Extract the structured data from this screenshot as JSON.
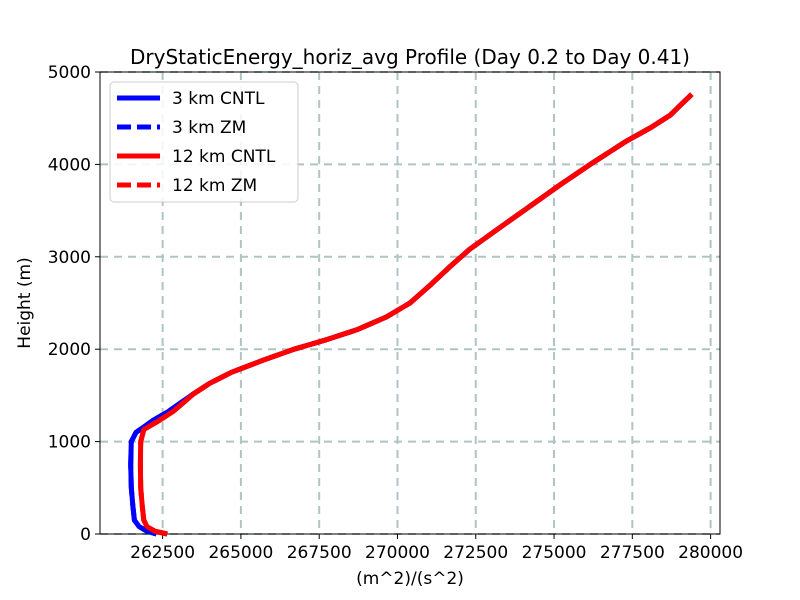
{
  "chart_data": {
    "type": "line",
    "title": "DryStaticEnergy_horiz_avg Profile (Day 0.2 to Day 0.41)",
    "xlabel": "(m^2)/(s^2)",
    "ylabel": "Height (m)",
    "xlim": [
      260500,
      280300
    ],
    "ylim": [
      0,
      5000
    ],
    "xticks": [
      262500,
      265000,
      267500,
      270000,
      272500,
      275000,
      277500,
      280000
    ],
    "xtick_labels": [
      "262500",
      "265000",
      "267500",
      "270000",
      "272500",
      "275000",
      "277500",
      "280000"
    ],
    "yticks": [
      0,
      1000,
      2000,
      3000,
      4000,
      5000
    ],
    "ytick_labels": [
      "0",
      "1000",
      "2000",
      "3000",
      "4000",
      "5000"
    ],
    "grid": true,
    "legend_position": "top-left",
    "series": [
      {
        "name": "3 km CNTL",
        "color": "#0000ff",
        "linestyle": "solid",
        "x": [
          262300,
          262000,
          261750,
          261600,
          261550,
          261500,
          261480,
          261500,
          261650,
          262200,
          262700,
          263500,
          264000,
          264700,
          265700,
          266700,
          267700,
          268700,
          269650,
          270400,
          271000,
          271700,
          272300,
          273200,
          274200,
          275200,
          276200,
          277300,
          278100,
          278700,
          279400
        ],
        "y": [
          0,
          30,
          80,
          150,
          300,
          500,
          750,
          1000,
          1100,
          1230,
          1330,
          1520,
          1630,
          1750,
          1880,
          2000,
          2100,
          2210,
          2350,
          2500,
          2680,
          2900,
          3080,
          3300,
          3540,
          3780,
          4010,
          4250,
          4400,
          4530,
          4760
        ]
      },
      {
        "name": "3 km ZM",
        "color": "#0000ff",
        "linestyle": "dashed",
        "x": [
          262300,
          262000,
          261750,
          261600,
          261550,
          261500,
          261480,
          261500,
          261650,
          262200,
          262700,
          263500,
          264000,
          264700,
          265700,
          266700,
          267700,
          268700,
          269650,
          270400,
          271000,
          271700,
          272300,
          273200,
          274200,
          275200,
          276200,
          277300,
          278100,
          278700,
          279400
        ],
        "y": [
          0,
          30,
          80,
          150,
          300,
          500,
          750,
          1000,
          1100,
          1230,
          1330,
          1520,
          1630,
          1750,
          1880,
          2000,
          2100,
          2210,
          2350,
          2500,
          2680,
          2900,
          3080,
          3300,
          3540,
          3780,
          4010,
          4250,
          4400,
          4530,
          4760
        ]
      },
      {
        "name": "12 km CNTL",
        "color": "#ff0000",
        "linestyle": "solid",
        "x": [
          262650,
          262250,
          262000,
          261900,
          261850,
          261800,
          261790,
          261800,
          261900,
          262400,
          262850,
          263500,
          264000,
          264700,
          265700,
          266700,
          267700,
          268700,
          269650,
          270400,
          271000,
          271700,
          272300,
          273200,
          274200,
          275200,
          276200,
          277300,
          278100,
          278700,
          279400
        ],
        "y": [
          0,
          30,
          80,
          150,
          300,
          500,
          750,
          1000,
          1130,
          1230,
          1330,
          1520,
          1630,
          1750,
          1880,
          2000,
          2100,
          2210,
          2350,
          2500,
          2680,
          2900,
          3080,
          3300,
          3540,
          3780,
          4010,
          4250,
          4400,
          4530,
          4760
        ]
      },
      {
        "name": "12 km ZM",
        "color": "#ff0000",
        "linestyle": "dashed",
        "x": [
          262650,
          262250,
          262000,
          261900,
          261850,
          261800,
          261790,
          261800,
          261900,
          262400,
          262850,
          263500,
          264000,
          264700,
          265700,
          266700,
          267700,
          268700,
          269650,
          270400,
          271000,
          271700,
          272300,
          273200,
          274200,
          275200,
          276200,
          277300,
          278100,
          278700,
          279400
        ],
        "y": [
          0,
          30,
          80,
          150,
          300,
          500,
          750,
          1000,
          1130,
          1230,
          1330,
          1520,
          1630,
          1750,
          1880,
          2000,
          2100,
          2210,
          2350,
          2500,
          2680,
          2900,
          3080,
          3300,
          3540,
          3780,
          4010,
          4250,
          4400,
          4530,
          4760
        ]
      }
    ]
  }
}
